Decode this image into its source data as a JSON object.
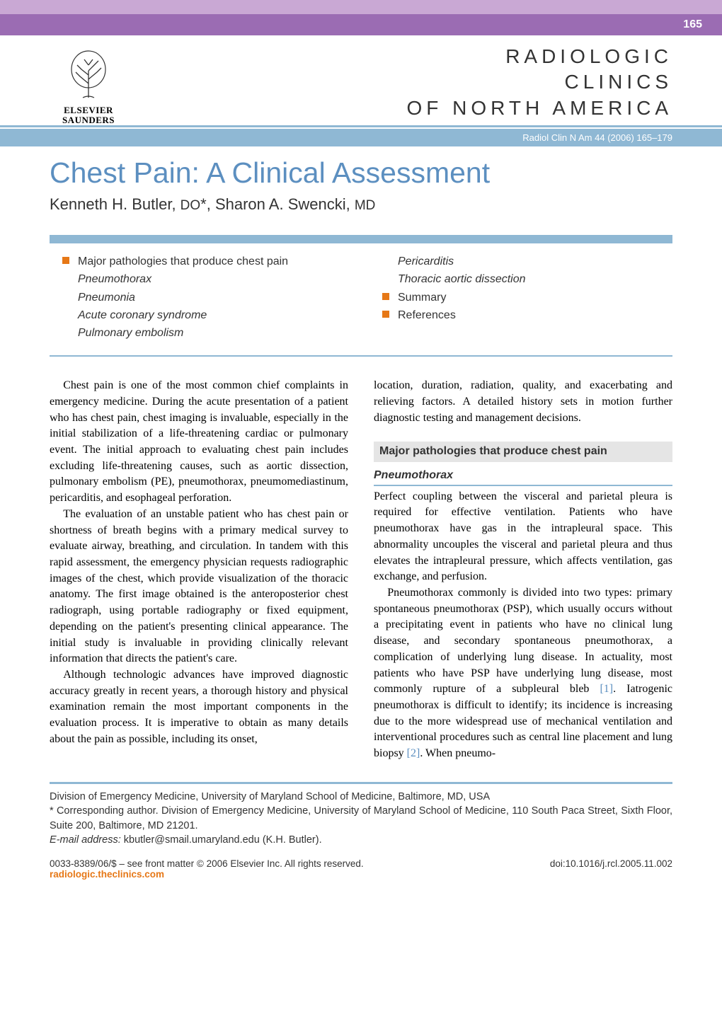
{
  "colors": {
    "top_bar": "#c9a8d4",
    "page_num_bg": "#9b6cb3",
    "accent_blue": "#8fb8d4",
    "title_blue": "#5c8fc0",
    "bullet_orange": "#e67817",
    "heading_bg": "#e5e5e5",
    "text": "#333333"
  },
  "page_number": "165",
  "publisher": {
    "line1": "ELSEVIER",
    "line2": "SAUNDERS"
  },
  "journal": {
    "line1": "RADIOLOGIC",
    "line2": "CLINICS",
    "line3": "OF NORTH AMERICA"
  },
  "citation": "Radiol Clin N Am 44 (2006) 165–179",
  "title": "Chest Pain: A Clinical Assessment",
  "authors_html": "Kenneth H. Butler, <span class='small-caps'>DO</span>*, Sharon A. Swencki, <span class='small-caps'>MD</span>",
  "toc": {
    "left": [
      {
        "bullet": true,
        "text": "Major pathologies that produce chest pain",
        "italic": false
      },
      {
        "bullet": false,
        "text": "Pneumothorax",
        "italic": true
      },
      {
        "bullet": false,
        "text": "Pneumonia",
        "italic": true
      },
      {
        "bullet": false,
        "text": "Acute coronary syndrome",
        "italic": true
      },
      {
        "bullet": false,
        "text": "Pulmonary embolism",
        "italic": true
      }
    ],
    "right": [
      {
        "bullet": false,
        "text": "Pericarditis",
        "italic": true
      },
      {
        "bullet": false,
        "text": "Thoracic aortic dissection",
        "italic": true
      },
      {
        "bullet": true,
        "text": "Summary",
        "italic": false
      },
      {
        "bullet": true,
        "text": "References",
        "italic": false
      }
    ]
  },
  "body": {
    "left": {
      "p1": "Chest pain is one of the most common chief complaints in emergency medicine. During the acute presentation of a patient who has chest pain, chest imaging is invaluable, especially in the initial stabilization of a life-threatening cardiac or pulmonary event. The initial approach to evaluating chest pain includes excluding life-threatening causes, such as aortic dissection, pulmonary embolism (PE), pneumothorax, pneumomediastinum, pericarditis, and esophageal perforation.",
      "p2": "The evaluation of an unstable patient who has chest pain or shortness of breath begins with a primary medical survey to evaluate airway, breathing, and circulation. In tandem with this rapid assessment, the emergency physician requests radiographic images of the chest, which provide visualization of the thoracic anatomy. The first image obtained is the anteroposterior chest radiograph, using portable radiography or fixed equipment, depending on the patient's presenting clinical appearance. The initial study is invaluable in providing clinically relevant information that directs the patient's care.",
      "p3": "Although technologic advances have improved diagnostic accuracy greatly in recent years, a thorough history and physical examination remain the most important components in the evaluation process. It is imperative to obtain as many details about the pain as possible, including its onset,"
    },
    "right": {
      "p1": "location, duration, radiation, quality, and exacerbating and relieving factors. A detailed history sets in motion further diagnostic testing and management decisions.",
      "heading": "Major pathologies that produce chest pain",
      "subheading": "Pneumothorax",
      "p2": "Perfect coupling between the visceral and parietal pleura is required for effective ventilation. Patients who have pneumothorax have gas in the intrapleural space. This abnormality uncouples the visceral and parietal pleura and thus elevates the intrapleural pressure, which affects ventilation, gas exchange, and perfusion.",
      "p3a": "Pneumothorax commonly is divided into two types: primary spontaneous pneumothorax (PSP), which usually occurs without a precipitating event in patients who have no clinical lung disease, and secondary spontaneous pneumothorax, a complication of underlying lung disease. In actuality, most patients who have PSP have underlying lung disease, most commonly rupture of a subpleural bleb ",
      "ref1": "[1]",
      "p3b": ". Iatrogenic pneumothorax is difficult to identify; its incidence is increasing due to the more widespread use of mechanical ventilation and interventional procedures such as central line placement and lung biopsy ",
      "ref2": "[2]",
      "p3c": ". When pneumo-"
    }
  },
  "affiliation": {
    "line1": "Division of Emergency Medicine, University of Maryland School of Medicine, Baltimore, MD, USA",
    "line2": "* Corresponding author. Division of Emergency Medicine, University of Maryland School of Medicine, 110 South Paca Street, Sixth Floor, Suite 200, Baltimore, MD 21201.",
    "email_label": "E-mail address:",
    "email": " kbutler@smail.umaryland.edu (K.H. Butler)."
  },
  "footer": {
    "left_line1": "0033-8389/06/$ – see front matter © 2006 Elsevier Inc. All rights reserved.",
    "website": "radiologic.theclinics.com",
    "doi": "doi:10.1016/j.rcl.2005.11.002"
  }
}
